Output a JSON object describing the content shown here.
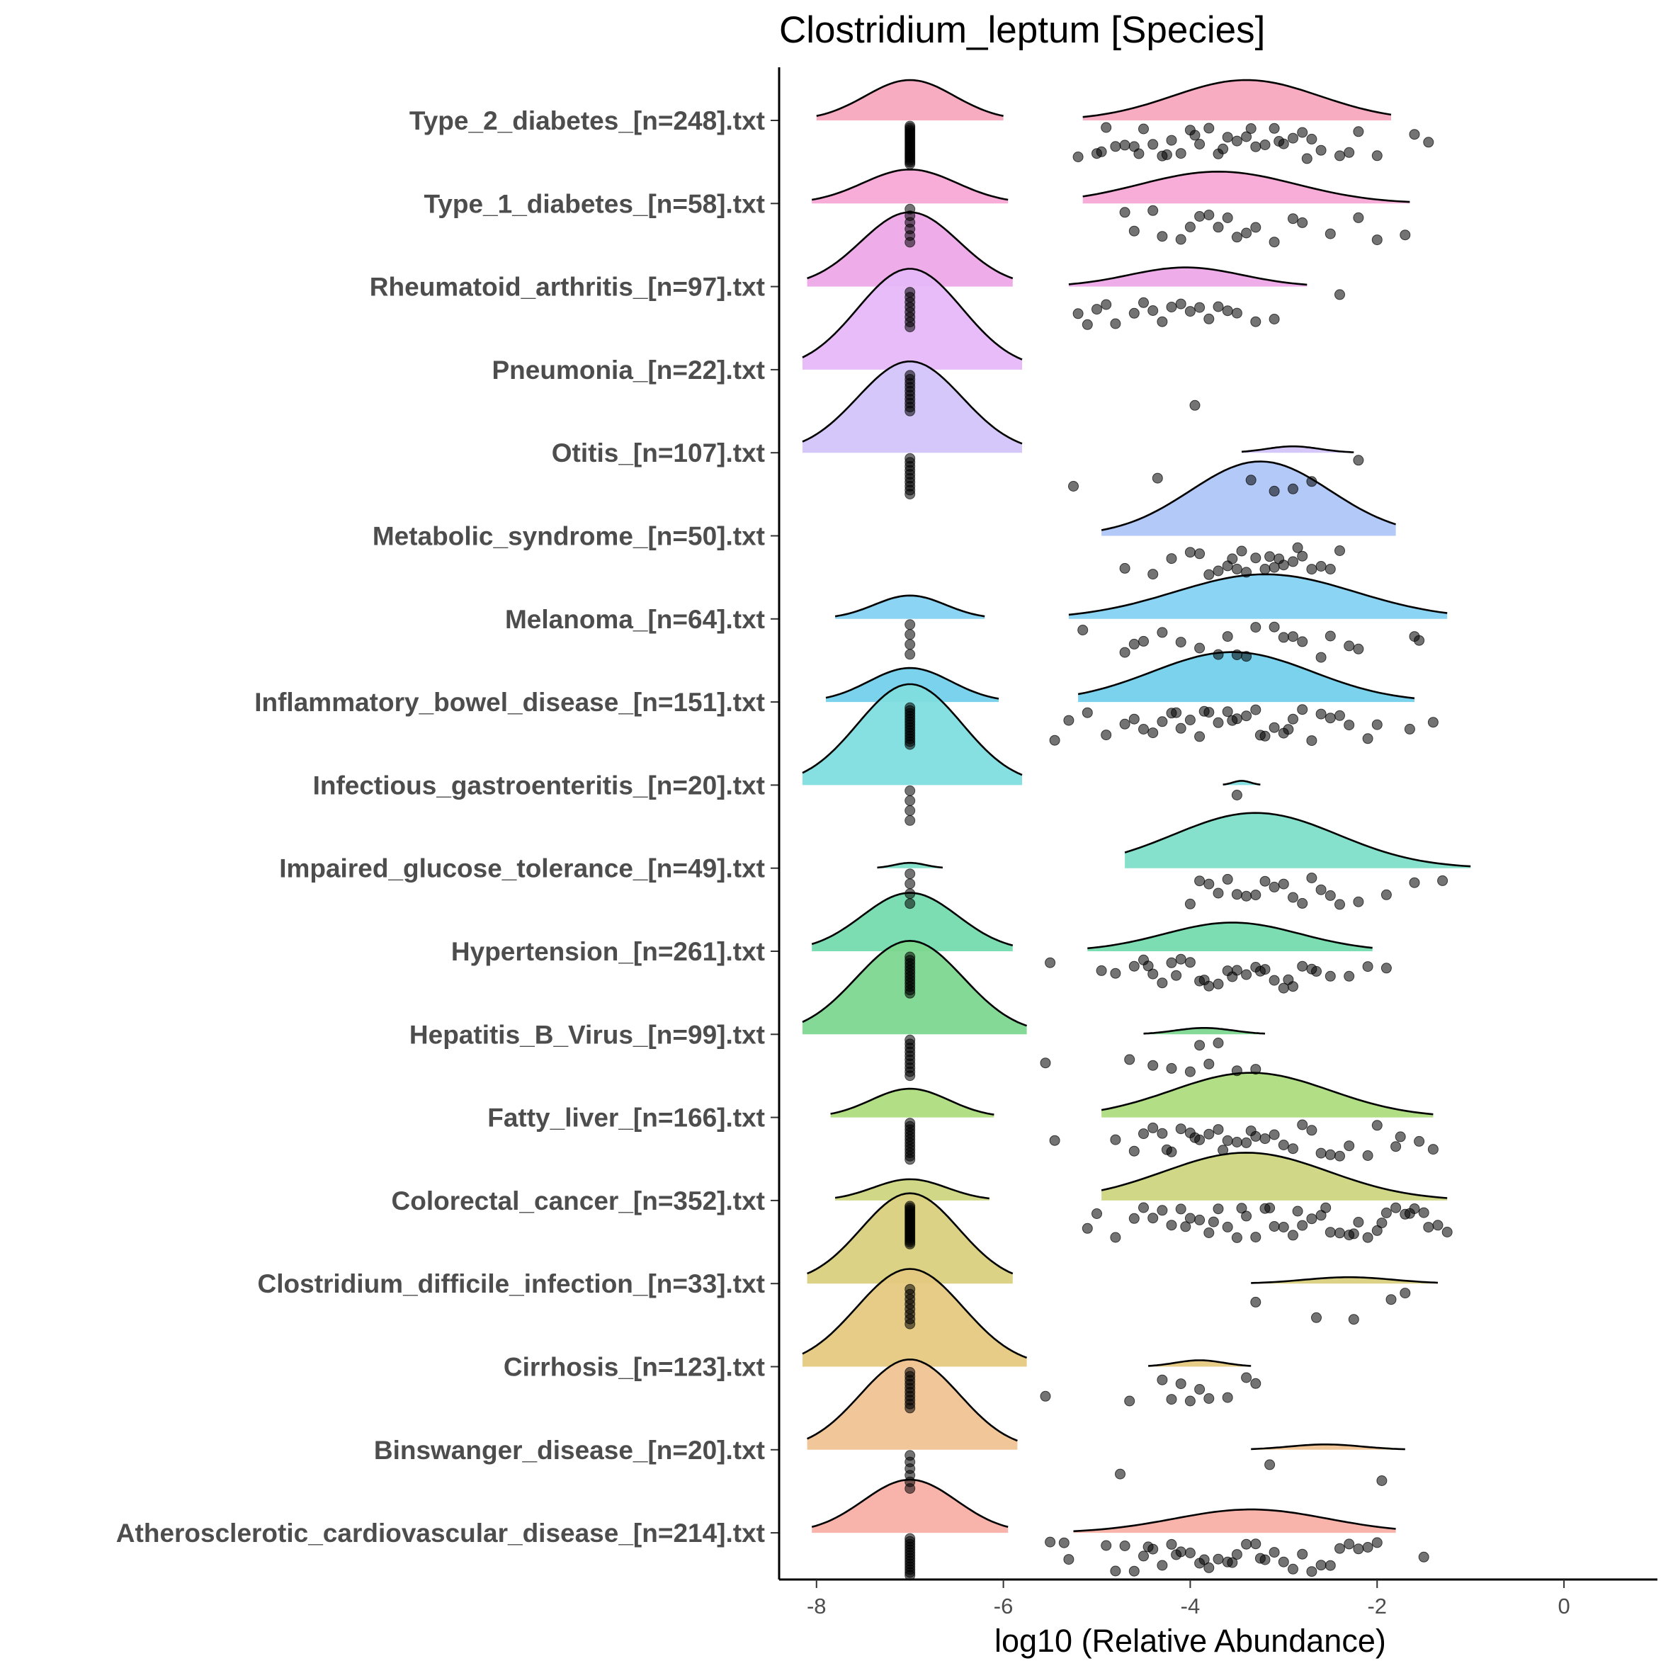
{
  "chart_data": {
    "type": "raincloud",
    "title": "Clostridium_leptum [Species]",
    "xlabel": "log10 (Relative Abundance)",
    "ylabel": "",
    "xlim": [
      -8.4,
      1.0
    ],
    "x_ticks": [
      -8,
      -6,
      -4,
      -2,
      0
    ],
    "x_tick_labels": [
      "-8",
      "-6",
      "-4",
      "-2",
      "0"
    ],
    "grid": false,
    "legend": "none",
    "zero_value": -7,
    "categories": [
      {
        "label": "Type_2_diabetes_[n=248].txt",
        "color": "#F8A8BE",
        "zero_density": {
          "from": -8.0,
          "to": -6.0,
          "height": 0.38
        },
        "nonzero_density": {
          "from": -5.15,
          "to": -1.85,
          "mode": -3.4,
          "height": 0.38
        },
        "zero_count": 22,
        "points": [
          -5.2,
          -5.0,
          -4.9,
          -4.8,
          -4.7,
          -4.6,
          -4.5,
          -4.4,
          -4.3,
          -4.2,
          -4.1,
          -4.0,
          -3.9,
          -3.8,
          -3.7,
          -3.6,
          -3.5,
          -3.4,
          -3.3,
          -3.2,
          -3.1,
          -3.0,
          -2.9,
          -2.8,
          -2.7,
          -2.6,
          -2.4,
          -2.3,
          -2.2,
          -2.0,
          -1.6,
          -1.45,
          -4.95,
          -4.55,
          -4.25,
          -3.95,
          -3.65,
          -3.35,
          -3.05,
          -2.75
        ]
      },
      {
        "label": "Type_1_diabetes_[n=58].txt",
        "color": "#F7A9D6",
        "zero_density": {
          "from": -8.05,
          "to": -5.95,
          "height": 0.32
        },
        "nonzero_density": {
          "from": -5.15,
          "to": -1.65,
          "mode": -3.7,
          "height": 0.3
        },
        "zero_count": 6,
        "points": [
          -4.7,
          -4.6,
          -4.4,
          -4.3,
          -4.1,
          -4.0,
          -3.9,
          -3.8,
          -3.7,
          -3.6,
          -3.5,
          -3.4,
          -3.1,
          -2.9,
          -2.8,
          -2.5,
          -2.2,
          -2.0,
          -1.7,
          -3.3
        ]
      },
      {
        "label": "Rheumatoid_arthritis_[n=97].txt",
        "color": "#EDA9E8",
        "zero_density": {
          "from": -8.1,
          "to": -5.9,
          "height": 0.7
        },
        "nonzero_density": {
          "from": -5.3,
          "to": -2.75,
          "mode": -4.05,
          "height": 0.18
        },
        "zero_count": 8,
        "points": [
          -5.2,
          -5.1,
          -5.0,
          -4.9,
          -4.8,
          -4.6,
          -4.5,
          -4.4,
          -4.3,
          -4.2,
          -4.1,
          -4.0,
          -3.9,
          -3.8,
          -3.7,
          -3.6,
          -3.5,
          -3.3,
          -3.1,
          -2.4
        ]
      },
      {
        "label": "Pneumonia_[n=22].txt",
        "color": "#E6B8F9",
        "zero_density": {
          "from": -8.15,
          "to": -5.8,
          "height": 0.95
        },
        "nonzero_density": null,
        "zero_count": 10,
        "points": [
          -3.95
        ]
      },
      {
        "label": "Otitis_[n=107].txt",
        "color": "#D3C4F9",
        "zero_density": {
          "from": -8.15,
          "to": -5.8,
          "height": 0.86
        },
        "nonzero_density": {
          "from": -3.45,
          "to": -2.25,
          "mode": -2.9,
          "height": 0.06
        },
        "zero_count": 10,
        "points": [
          -5.25,
          -4.35,
          -3.35,
          -3.1,
          -2.9,
          -2.7,
          -2.2
        ]
      },
      {
        "label": "Metabolic_syndrome_[n=50].txt",
        "color": "#AFC6F8",
        "zero_density": {
          "from": -8.0,
          "to": -8.0,
          "height": 0.0
        },
        "nonzero_density": {
          "from": -4.95,
          "to": -1.8,
          "mode": -3.25,
          "height": 0.7
        },
        "zero_count": 0,
        "points": [
          -4.7,
          -4.4,
          -4.2,
          -4.0,
          -3.9,
          -3.8,
          -3.7,
          -3.6,
          -3.5,
          -3.4,
          -3.3,
          -3.2,
          -3.1,
          -3.0,
          -2.9,
          -2.8,
          -2.7,
          -2.6,
          -2.5,
          -2.4,
          -3.55,
          -3.45,
          -3.15,
          -3.05,
          -2.85
        ]
      },
      {
        "label": "Melanoma_[n=64].txt",
        "color": "#86D2F2",
        "zero_density": {
          "from": -7.8,
          "to": -6.2,
          "height": 0.22
        },
        "nonzero_density": {
          "from": -5.3,
          "to": -1.25,
          "mode": -3.2,
          "height": 0.42
        },
        "zero_count": 4,
        "points": [
          -5.15,
          -4.7,
          -4.6,
          -4.5,
          -4.3,
          -4.1,
          -3.9,
          -3.7,
          -3.6,
          -3.5,
          -3.4,
          -3.3,
          -3.1,
          -3.0,
          -2.9,
          -2.8,
          -2.6,
          -2.5,
          -2.3,
          -2.2,
          -1.6,
          -1.55
        ]
      },
      {
        "label": "Inflammatory_bowel_disease_[n=151].txt",
        "color": "#74D0EC",
        "zero_density": {
          "from": -7.9,
          "to": -6.05,
          "height": 0.32
        },
        "nonzero_density": {
          "from": -5.2,
          "to": -1.6,
          "mode": -3.55,
          "height": 0.47
        },
        "zero_count": 14,
        "points": [
          -5.45,
          -5.3,
          -5.1,
          -4.9,
          -4.7,
          -4.6,
          -4.5,
          -4.4,
          -4.3,
          -4.2,
          -4.1,
          -4.0,
          -3.9,
          -3.8,
          -3.7,
          -3.6,
          -3.5,
          -3.4,
          -3.3,
          -3.2,
          -3.1,
          -3.0,
          -2.9,
          -2.8,
          -2.7,
          -2.6,
          -2.5,
          -2.4,
          -2.3,
          -2.1,
          -2.0,
          -1.65,
          -1.4,
          -4.15,
          -3.85,
          -3.55,
          -3.25,
          -2.95
        ]
      },
      {
        "label": "Infectious_gastroenteritis_[n=20].txt",
        "color": "#7FDDDF",
        "zero_density": {
          "from": -8.15,
          "to": -5.8,
          "height": 0.95
        },
        "nonzero_density": {
          "from": -3.65,
          "to": -3.25,
          "mode": -3.45,
          "height": 0.04
        },
        "zero_count": 4,
        "points": [
          -3.5
        ]
      },
      {
        "label": "Impaired_glucose_tolerance_[n=49].txt",
        "color": "#7EDFC8",
        "zero_density": {
          "from": -7.35,
          "to": -6.65,
          "height": 0.05
        },
        "nonzero_density": {
          "from": -4.7,
          "to": -1.0,
          "mode": -3.3,
          "height": 0.52
        },
        "zero_count": 4,
        "points": [
          -4.0,
          -3.9,
          -3.8,
          -3.7,
          -3.6,
          -3.5,
          -3.4,
          -3.3,
          -3.2,
          -3.1,
          -3.0,
          -2.9,
          -2.8,
          -2.7,
          -2.6,
          -2.5,
          -2.4,
          -2.2,
          -1.9,
          -1.6,
          -1.3
        ]
      },
      {
        "label": "Hypertension_[n=261].txt",
        "color": "#75DBAE",
        "zero_density": {
          "from": -8.05,
          "to": -5.9,
          "height": 0.55
        },
        "nonzero_density": {
          "from": -5.1,
          "to": -2.05,
          "mode": -3.55,
          "height": 0.27
        },
        "zero_count": 12,
        "points": [
          -5.5,
          -4.95,
          -4.8,
          -4.6,
          -4.5,
          -4.4,
          -4.3,
          -4.2,
          -4.1,
          -4.0,
          -3.9,
          -3.8,
          -3.7,
          -3.6,
          -3.5,
          -3.4,
          -3.3,
          -3.2,
          -3.1,
          -3.0,
          -2.9,
          -2.8,
          -2.7,
          -2.5,
          -2.3,
          -2.1,
          -1.9,
          -4.45,
          -4.15,
          -3.85,
          -3.55,
          -3.25,
          -2.95,
          -2.65
        ]
      },
      {
        "label": "Hepatitis_B_Virus_[n=99].txt",
        "color": "#7CD78F",
        "zero_density": {
          "from": -8.15,
          "to": -5.75,
          "height": 0.88
        },
        "nonzero_density": {
          "from": -4.5,
          "to": -3.2,
          "mode": -3.85,
          "height": 0.06
        },
        "zero_count": 10,
        "points": [
          -5.55,
          -4.65,
          -4.4,
          -4.2,
          -4.0,
          -3.9,
          -3.8,
          -3.7,
          -3.5,
          -3.3
        ]
      },
      {
        "label": "Fatty_liver_[n=166].txt",
        "color": "#AEDC7E",
        "zero_density": {
          "from": -7.85,
          "to": -6.1,
          "height": 0.27
        },
        "nonzero_density": {
          "from": -4.95,
          "to": -1.4,
          "mode": -3.35,
          "height": 0.42
        },
        "zero_count": 12,
        "points": [
          -5.45,
          -4.8,
          -4.6,
          -4.5,
          -4.4,
          -4.3,
          -4.2,
          -4.1,
          -4.0,
          -3.9,
          -3.8,
          -3.7,
          -3.6,
          -3.5,
          -3.4,
          -3.3,
          -3.2,
          -3.1,
          -3.0,
          -2.9,
          -2.8,
          -2.7,
          -2.6,
          -2.5,
          -2.4,
          -2.3,
          -2.1,
          -2.0,
          -1.8,
          -1.75,
          -1.55,
          -1.4,
          -4.25,
          -3.95,
          -3.65,
          -3.35
        ]
      },
      {
        "label": "Colorectal_cancer_[n=352].txt",
        "color": "#CDD681",
        "zero_density": {
          "from": -7.8,
          "to": -6.15,
          "height": 0.2
        },
        "nonzero_density": {
          "from": -4.95,
          "to": -1.25,
          "mode": -3.4,
          "height": 0.45
        },
        "zero_count": 22,
        "points": [
          -5.1,
          -5.0,
          -4.8,
          -4.6,
          -4.5,
          -4.4,
          -4.3,
          -4.2,
          -4.1,
          -4.0,
          -3.9,
          -3.8,
          -3.7,
          -3.6,
          -3.5,
          -3.4,
          -3.3,
          -3.2,
          -3.1,
          -3.0,
          -2.9,
          -2.8,
          -2.7,
          -2.6,
          -2.5,
          -2.4,
          -2.3,
          -2.2,
          -2.1,
          -2.0,
          -1.9,
          -1.8,
          -1.7,
          -1.6,
          -1.5,
          -1.45,
          -1.35,
          -1.25,
          -4.05,
          -3.75,
          -3.45,
          -3.15,
          -2.85,
          -2.55,
          -2.25,
          -1.95,
          -1.65
        ]
      },
      {
        "label": "Clostridium_difficile_infection_[n=33].txt",
        "color": "#D9D07E",
        "zero_density": {
          "from": -8.1,
          "to": -5.9,
          "height": 0.85
        },
        "nonzero_density": {
          "from": -3.35,
          "to": -1.35,
          "mode": -2.3,
          "height": 0.06
        },
        "zero_count": 8,
        "points": [
          -3.3,
          -2.65,
          -2.25,
          -1.85,
          -1.7
        ]
      },
      {
        "label": "Cirrhosis_[n=123].txt",
        "color": "#E5C97F",
        "zero_density": {
          "from": -8.15,
          "to": -5.75,
          "height": 0.92
        },
        "nonzero_density": {
          "from": -4.45,
          "to": -3.35,
          "mode": -3.9,
          "height": 0.06
        },
        "zero_count": 10,
        "points": [
          -5.55,
          -4.65,
          -4.3,
          -4.2,
          -4.1,
          -4.0,
          -3.9,
          -3.8,
          -3.6,
          -3.4,
          -3.3
        ]
      },
      {
        "label": "Binswanger_disease_[n=20].txt",
        "color": "#F0C394",
        "zero_density": {
          "from": -8.1,
          "to": -5.85,
          "height": 0.85
        },
        "nonzero_density": {
          "from": -3.35,
          "to": -1.7,
          "mode": -2.55,
          "height": 0.05
        },
        "zero_count": 6,
        "points": [
          -4.75,
          -3.15,
          -1.95
        ]
      },
      {
        "label": "Atherosclerotic_cardiovascular_disease_[n=214].txt",
        "color": "#F8AFA6",
        "zero_density": {
          "from": -8.05,
          "to": -5.95,
          "height": 0.5
        },
        "nonzero_density": {
          "from": -5.25,
          "to": -1.8,
          "mode": -3.35,
          "height": 0.22
        },
        "zero_count": 14,
        "points": [
          -5.5,
          -5.35,
          -5.3,
          -4.9,
          -4.8,
          -4.7,
          -4.6,
          -4.5,
          -4.4,
          -4.3,
          -4.2,
          -4.1,
          -4.0,
          -3.9,
          -3.8,
          -3.7,
          -3.6,
          -3.5,
          -3.4,
          -3.3,
          -3.2,
          -3.1,
          -3.0,
          -2.9,
          -2.8,
          -2.7,
          -2.6,
          -2.5,
          -2.4,
          -2.3,
          -2.2,
          -2.1,
          -2.0,
          -1.5,
          -4.45,
          -4.15,
          -3.85,
          -3.55,
          -3.25
        ]
      }
    ]
  }
}
